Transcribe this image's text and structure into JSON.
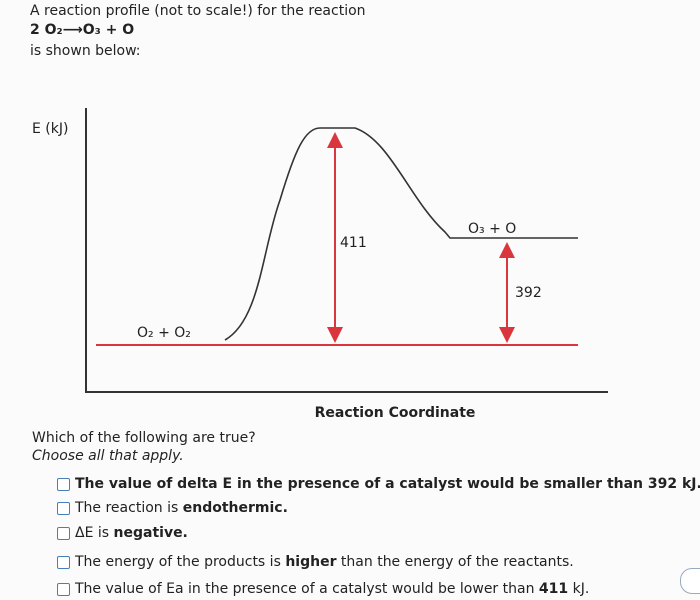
{
  "header": {
    "line1": "A reaction profile (not to scale!) for the reaction",
    "equation": "2 O₂⟶O₃ + O",
    "line3": "is shown below:"
  },
  "diagram": {
    "y_label": "E (kJ)",
    "x_label": "Reaction Coordinate",
    "reactants": "O₂ + O₂",
    "products": "O₃ + O",
    "activation_label": "411",
    "delta_label": "392"
  },
  "question": {
    "prompt": "Which of the following are true?",
    "instruction": "Choose all that apply."
  },
  "options": [
    {
      "parts": [
        {
          "text": "The value of delta E in the presence of a catalyst would be smaller than 392 kJ.",
          "bold": true
        }
      ]
    },
    {
      "parts": [
        {
          "text": "The reaction is ",
          "bold": false
        },
        {
          "text": "endothermic.",
          "bold": true
        }
      ]
    },
    {
      "parts": [
        {
          "text": "ΔE is ",
          "bold": false
        },
        {
          "text": "negative.",
          "bold": true
        }
      ]
    },
    {
      "parts": [
        {
          "text": "The energy of the products is ",
          "bold": false
        },
        {
          "text": "higher",
          "bold": true
        },
        {
          "text": " than the energy of the reactants.",
          "bold": false
        }
      ]
    },
    {
      "parts": [
        {
          "text": "The value of Ea in the presence of a catalyst would be lower than ",
          "bold": false
        },
        {
          "text": "411",
          "bold": true
        },
        {
          "text": " kJ.",
          "bold": false
        }
      ]
    }
  ]
}
